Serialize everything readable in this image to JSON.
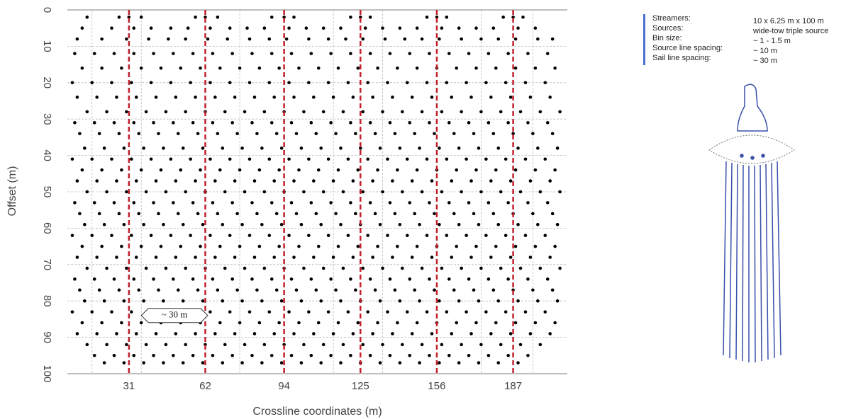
{
  "chart_data": {
    "type": "scatter",
    "xlabel": "Crossline coordinates (m)",
    "ylabel": "Offset (m)",
    "xlim": [
      6,
      209
    ],
    "ylim": [
      0,
      100
    ],
    "y_inverted": true,
    "xticks": [
      31,
      62,
      94,
      125,
      156,
      187
    ],
    "yticks": [
      0,
      10,
      20,
      30,
      40,
      50,
      60,
      70,
      80,
      90,
      100
    ],
    "tick_lines_color": "#c0202a",
    "grid": true,
    "xgrid": [
      16,
      36,
      76,
      114,
      134,
      174,
      195
    ],
    "color": "#000000",
    "rows": [
      {
        "y": 2,
        "x": [
          14,
          27,
          31,
          36,
          58,
          62,
          67,
          89,
          94,
          98,
          121,
          125,
          129,
          152,
          156,
          160,
          183,
          187,
          191
        ]
      },
      {
        "y": 5,
        "x": [
          12,
          24,
          33,
          40,
          48,
          55,
          64,
          72,
          79,
          86,
          96,
          103,
          110,
          117,
          127,
          134,
          141,
          148,
          158,
          165,
          172,
          179,
          189,
          196
        ]
      },
      {
        "y": 8,
        "x": [
          10,
          20,
          30,
          39,
          47,
          54,
          63,
          71,
          80,
          88,
          95,
          104,
          112,
          119,
          126,
          135,
          143,
          150,
          157,
          166,
          174,
          181,
          188,
          197,
          203
        ]
      },
      {
        "y": 12,
        "x": [
          9,
          17,
          25,
          33,
          41,
          49,
          57,
          65,
          73,
          81,
          89,
          97,
          105,
          113,
          121,
          129,
          137,
          145,
          153,
          161,
          169,
          177,
          185,
          193,
          201
        ]
      },
      {
        "y": 16,
        "x": [
          12,
          20,
          28,
          36,
          44,
          52,
          60,
          68,
          76,
          84,
          92,
          100,
          108,
          116,
          124,
          132,
          140,
          148,
          156,
          164,
          172,
          180,
          188,
          196,
          204
        ]
      },
      {
        "y": 20,
        "x": [
          8,
          16,
          24,
          32,
          40,
          48,
          56,
          64,
          72,
          80,
          88,
          96,
          104,
          112,
          120,
          128,
          136,
          144,
          152,
          160,
          168,
          176,
          184,
          192,
          200
        ]
      },
      {
        "y": 24,
        "x": [
          10,
          18,
          26,
          34,
          42,
          50,
          58,
          66,
          74,
          82,
          90,
          98,
          106,
          114,
          122,
          130,
          138,
          146,
          154,
          162,
          170,
          178,
          186,
          194,
          202
        ]
      },
      {
        "y": 28,
        "x": [
          14,
          22,
          30,
          38,
          46,
          54,
          62,
          70,
          78,
          86,
          94,
          102,
          110,
          118,
          126,
          134,
          142,
          150,
          158,
          166,
          174,
          182,
          190,
          198,
          206
        ]
      },
      {
        "y": 31,
        "x": [
          9,
          17,
          25,
          33,
          41,
          49,
          57,
          65,
          73,
          81,
          89,
          97,
          105,
          113,
          121,
          129,
          137,
          145,
          153,
          161,
          169,
          177,
          185,
          193,
          201
        ]
      },
      {
        "y": 34,
        "x": [
          11,
          19,
          27,
          35,
          43,
          51,
          59,
          67,
          75,
          83,
          91,
          99,
          107,
          115,
          123,
          131,
          139,
          147,
          155,
          163,
          171,
          179,
          187,
          195,
          203
        ]
      },
      {
        "y": 38,
        "x": [
          13,
          21,
          29,
          37,
          45,
          53,
          61,
          69,
          77,
          85,
          93,
          101,
          109,
          117,
          125,
          133,
          141,
          149,
          157,
          165,
          173,
          181,
          189,
          197,
          205
        ]
      },
      {
        "y": 41,
        "x": [
          8,
          16,
          24,
          32,
          40,
          48,
          56,
          64,
          72,
          80,
          88,
          96,
          104,
          112,
          120,
          128,
          136,
          144,
          152,
          160,
          168,
          176,
          184,
          192,
          200
        ]
      },
      {
        "y": 44,
        "x": [
          12,
          20,
          28,
          36,
          44,
          52,
          60,
          68,
          76,
          84,
          92,
          100,
          108,
          116,
          124,
          132,
          140,
          148,
          156,
          164,
          172,
          180,
          188,
          196,
          204
        ]
      },
      {
        "y": 47,
        "x": [
          10,
          18,
          26,
          34,
          42,
          50,
          58,
          66,
          74,
          82,
          90,
          98,
          106,
          114,
          122,
          130,
          138,
          146,
          154,
          162,
          170,
          178,
          186,
          194,
          202
        ]
      },
      {
        "y": 50,
        "x": [
          14,
          22,
          30,
          38,
          46,
          54,
          62,
          70,
          78,
          86,
          94,
          102,
          110,
          118,
          126,
          134,
          142,
          150,
          158,
          166,
          174,
          182,
          190,
          198,
          206
        ]
      },
      {
        "y": 53,
        "x": [
          9,
          17,
          25,
          33,
          41,
          49,
          57,
          65,
          73,
          81,
          89,
          97,
          105,
          113,
          121,
          129,
          137,
          145,
          153,
          161,
          169,
          177,
          185,
          193,
          201
        ]
      },
      {
        "y": 56,
        "x": [
          11,
          19,
          27,
          35,
          43,
          51,
          59,
          67,
          75,
          83,
          91,
          99,
          107,
          115,
          123,
          131,
          139,
          147,
          155,
          163,
          171,
          179,
          187,
          195,
          203
        ]
      },
      {
        "y": 59,
        "x": [
          13,
          21,
          29,
          37,
          45,
          53,
          61,
          69,
          77,
          85,
          93,
          101,
          109,
          117,
          125,
          133,
          141,
          149,
          157,
          165,
          173,
          181,
          189,
          197,
          205
        ]
      },
      {
        "y": 62,
        "x": [
          8,
          16,
          24,
          32,
          40,
          48,
          56,
          64,
          72,
          80,
          88,
          96,
          104,
          112,
          120,
          128,
          136,
          144,
          152,
          160,
          168,
          176,
          184,
          192,
          200
        ]
      },
      {
        "y": 65,
        "x": [
          12,
          20,
          28,
          36,
          44,
          52,
          60,
          68,
          76,
          84,
          92,
          100,
          108,
          116,
          124,
          132,
          140,
          148,
          156,
          164,
          172,
          180,
          188,
          196,
          204
        ]
      },
      {
        "y": 68,
        "x": [
          10,
          18,
          26,
          34,
          42,
          50,
          58,
          66,
          74,
          82,
          90,
          98,
          106,
          114,
          122,
          130,
          138,
          146,
          154,
          162,
          170,
          178,
          186,
          194,
          202
        ]
      },
      {
        "y": 71,
        "x": [
          14,
          22,
          30,
          38,
          46,
          54,
          62,
          70,
          78,
          86,
          94,
          102,
          110,
          118,
          126,
          134,
          142,
          150,
          158,
          166,
          174,
          182,
          190,
          198,
          206
        ]
      },
      {
        "y": 74,
        "x": [
          9,
          17,
          25,
          33,
          41,
          49,
          57,
          65,
          73,
          81,
          89,
          97,
          105,
          113,
          121,
          129,
          137,
          145,
          153,
          161,
          169,
          177,
          185,
          193,
          201
        ]
      },
      {
        "y": 77,
        "x": [
          11,
          19,
          27,
          35,
          43,
          51,
          59,
          67,
          75,
          83,
          91,
          99,
          107,
          115,
          123,
          131,
          139,
          147,
          155,
          163,
          171,
          179,
          187,
          195,
          203
        ]
      },
      {
        "y": 80,
        "x": [
          13,
          21,
          29,
          37,
          45,
          53,
          61,
          69,
          77,
          85,
          93,
          101,
          109,
          117,
          125,
          133,
          141,
          149,
          157,
          165,
          173,
          181,
          189,
          197,
          205
        ]
      },
      {
        "y": 83,
        "x": [
          8,
          16,
          24,
          32,
          40,
          48,
          56,
          64,
          72,
          80,
          88,
          96,
          104,
          112,
          120,
          128,
          136,
          144,
          152,
          160,
          168,
          176,
          184,
          192,
          200
        ]
      },
      {
        "y": 86,
        "x": [
          12,
          20,
          28,
          36,
          44,
          52,
          60,
          68,
          76,
          84,
          92,
          100,
          108,
          116,
          124,
          132,
          140,
          148,
          156,
          164,
          172,
          180,
          188,
          196,
          204
        ]
      },
      {
        "y": 89,
        "x": [
          10,
          18,
          26,
          34,
          42,
          50,
          58,
          66,
          74,
          82,
          90,
          98,
          106,
          114,
          122,
          130,
          138,
          146,
          154,
          162,
          170,
          178,
          186,
          194,
          202
        ]
      },
      {
        "y": 92,
        "x": [
          14,
          22,
          30,
          38,
          46,
          54,
          62,
          70,
          78,
          86,
          94,
          102,
          110,
          118,
          126,
          134,
          142,
          150,
          158,
          166,
          174,
          182,
          190,
          198
        ]
      },
      {
        "y": 95,
        "x": [
          17,
          25,
          33,
          41,
          49,
          57,
          65,
          73,
          81,
          89,
          97,
          105,
          113,
          121,
          129,
          137,
          145,
          153,
          161,
          169,
          177,
          185,
          193
        ]
      },
      {
        "y": 97,
        "x": [
          21,
          29,
          37,
          45,
          53,
          61,
          69,
          77,
          85,
          93,
          101,
          109,
          117,
          125,
          133,
          141,
          149,
          157,
          165,
          173,
          181,
          189
        ]
      }
    ],
    "annotation": {
      "text": "~ 30 m",
      "x": [
        36,
        63
      ],
      "y": 84
    }
  },
  "info": {
    "rows": [
      {
        "label": "Streamers:",
        "value": "10 x 6.25 m x 100 m"
      },
      {
        "label": "Sources:",
        "value": "wide-tow triple source"
      },
      {
        "label": "Bin size:",
        "value": "~ 1 - 1.5 m"
      },
      {
        "label": "Source line spacing:",
        "value": "~ 10 m"
      },
      {
        "label": "Sail line spacing:",
        "value": "~ 30 m"
      }
    ]
  }
}
